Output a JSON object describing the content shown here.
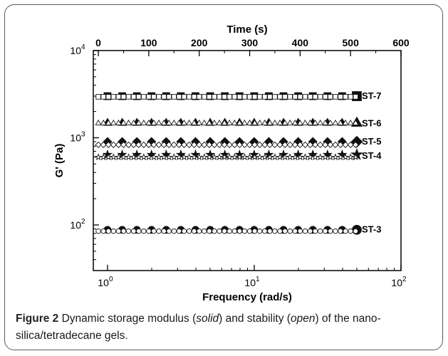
{
  "figure": {
    "label": "Figure 2",
    "caption_parts": [
      "Dynamic storage modulus (",
      "solid",
      ") and stability (",
      "open",
      ") of the nano-silica/tetradecane gels."
    ]
  },
  "chart_data": {
    "type": "scatter",
    "title": "",
    "xlabel": "Frequency (rad/s)",
    "ylabel": "G' (Pa)",
    "x2label": "Time (s)",
    "x_scale": "log",
    "y_scale": "log",
    "xlim": [
      0.8,
      100
    ],
    "ylim": [
      30,
      10000
    ],
    "x2lim": [
      -10,
      600
    ],
    "x_ticks": [
      {
        "v": 1,
        "label": "10",
        "exp": "0"
      },
      {
        "v": 10,
        "label": "10",
        "exp": "1"
      },
      {
        "v": 100,
        "label": "10",
        "exp": "2"
      }
    ],
    "y_ticks": [
      {
        "v": 100,
        "label": "10",
        "exp": "2"
      },
      {
        "v": 1000,
        "label": "10",
        "exp": "3"
      },
      {
        "v": 10000,
        "label": "10",
        "exp": "4"
      }
    ],
    "x2_ticks": [
      0,
      100,
      200,
      300,
      400,
      500,
      600
    ],
    "grid": false,
    "legend": "series labels at right end of each series",
    "colors": {
      "marker": "#111111",
      "axis": "#000000",
      "frame": "#5a5a5a"
    },
    "series": [
      {
        "name": "ST-7",
        "marker": "square",
        "solid_value": 3000,
        "open_value": 2950,
        "label_value": 3050
      },
      {
        "name": "ST-6",
        "marker": "triangle",
        "solid_value": 1500,
        "open_value": 1480,
        "label_value": 1480
      },
      {
        "name": "ST-5",
        "marker": "diamond",
        "solid_value": 900,
        "open_value": 830,
        "label_value": 920
      },
      {
        "name": "ST-4",
        "marker": "star",
        "solid_value": 640,
        "open_value": 600,
        "label_value": 630
      },
      {
        "name": "ST-3",
        "marker": "circle",
        "solid_value": 88,
        "open_value": 85,
        "label_value": 90
      }
    ]
  }
}
